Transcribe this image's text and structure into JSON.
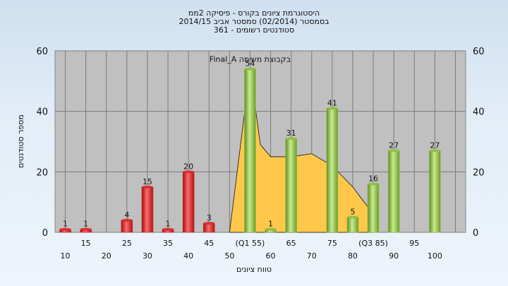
{
  "chart_data": {
    "type": "bar",
    "title_lines": [
      "היסטוגרמת ציונים בקורס - פיסיקה 2ממ",
      "בסמסטר  (02/2014)  סמסטר אביב 2014/15",
      "סטודנטים רשומים - 361"
    ],
    "xlabel": "טווח ציונים",
    "ylabel": "מספר סטודנטים",
    "ylim": [
      0,
      60
    ],
    "yticks": [
      0,
      20,
      40,
      60
    ],
    "grid": true,
    "x_ticks_lower": [
      "10",
      "20",
      "30",
      "40",
      "50",
      "60",
      "70",
      "80",
      "90",
      "100"
    ],
    "x_ticks_upper": [
      "15",
      "25",
      "35",
      "45",
      "(Q1 55)",
      "65",
      "75",
      "(Q3 85)",
      "95"
    ],
    "bars": [
      {
        "x": 10,
        "value": 1,
        "label": "1",
        "color": "red"
      },
      {
        "x": 15,
        "value": 1,
        "label": "1",
        "color": "red"
      },
      {
        "x": 25,
        "value": 4,
        "label": "4",
        "color": "red"
      },
      {
        "x": 30,
        "value": 15,
        "label": "15",
        "color": "red"
      },
      {
        "x": 35,
        "value": 1,
        "label": "1",
        "color": "red"
      },
      {
        "x": 40,
        "value": 20,
        "label": "20",
        "color": "red"
      },
      {
        "x": 45,
        "value": 3,
        "label": "3",
        "color": "red"
      },
      {
        "x": 55,
        "value": 54,
        "label": "54",
        "color": "green"
      },
      {
        "x": 60,
        "value": 1,
        "label": "1",
        "color": "green"
      },
      {
        "x": 65,
        "value": 31,
        "label": "31",
        "color": "green"
      },
      {
        "x": 75,
        "value": 41,
        "label": "41",
        "color": "green"
      },
      {
        "x": 80,
        "value": 5,
        "label": "5",
        "color": "green"
      },
      {
        "x": 85,
        "value": 16,
        "label": "16",
        "color": "green"
      },
      {
        "x": 90,
        "value": 27,
        "label": "27",
        "color": "green"
      },
      {
        "x": 100,
        "value": 27,
        "label": "27",
        "color": "green"
      }
    ],
    "area_series": {
      "name": "Final_A בקבוצת משימה",
      "points": [
        [
          50,
          0
        ],
        [
          55,
          54
        ],
        [
          57.5,
          29
        ],
        [
          60,
          25
        ],
        [
          65,
          25
        ],
        [
          70,
          26
        ],
        [
          75,
          22
        ],
        [
          80,
          15
        ],
        [
          85,
          6
        ],
        [
          85,
          0
        ]
      ]
    },
    "colors": {
      "red": "#d92b2b",
      "green": "#8fbf45",
      "area": "#ffc84a",
      "plot_bg": "#c0c0c0",
      "grid": "#7a7a7a"
    }
  }
}
